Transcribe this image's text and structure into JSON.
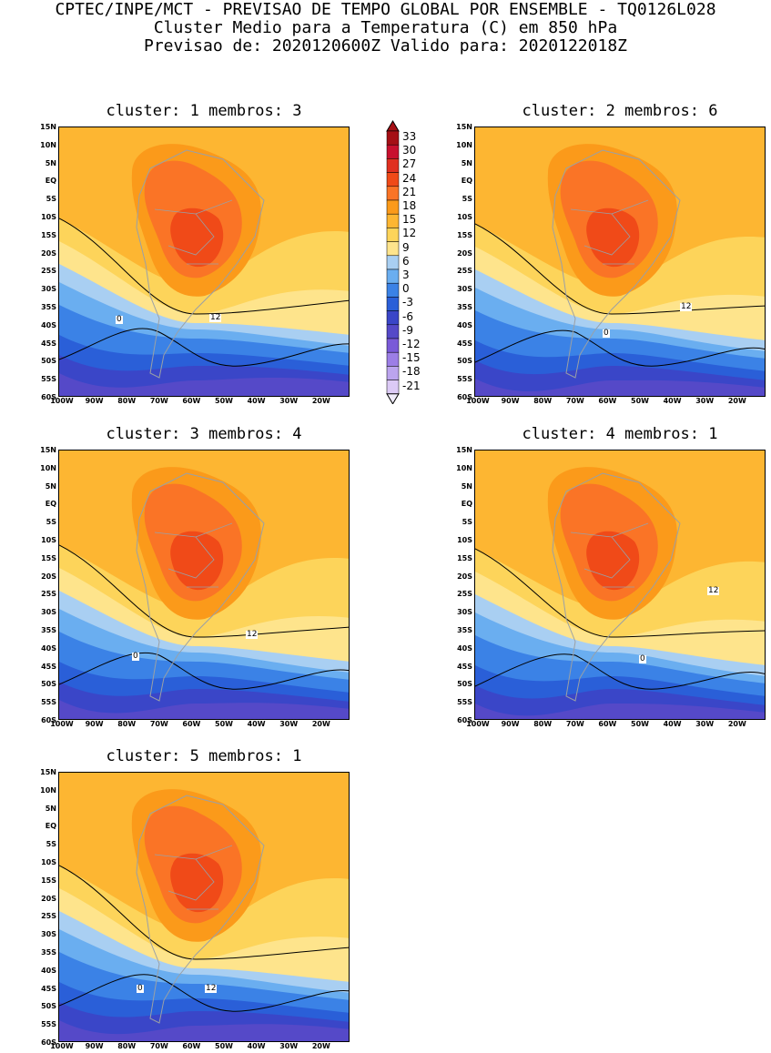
{
  "header": {
    "line1": "CPTEC/INPE/MCT - PREVISAO DE TEMPO GLOBAL POR ENSEMBLE - TQ0126L028",
    "line2": "Cluster Medio para a Temperatura (C) em 850 hPa",
    "line3": "Previsao de: 2020120600Z   Valido para: 2020122018Z"
  },
  "axes": {
    "lat_labels": [
      "15N",
      "10N",
      "5N",
      "EQ",
      "5S",
      "10S",
      "15S",
      "20S",
      "25S",
      "30S",
      "35S",
      "40S",
      "45S",
      "50S",
      "55S",
      "60S"
    ],
    "lon_labels": [
      "100W",
      "90W",
      "80W",
      "70W",
      "60W",
      "50W",
      "40W",
      "30W",
      "20W"
    ]
  },
  "colorbar": {
    "levels": [
      "33",
      "30",
      "27",
      "24",
      "21",
      "18",
      "15",
      "12",
      "9",
      "6",
      "3",
      "0",
      "-3",
      "-6",
      "-9",
      "-12",
      "-15",
      "-18",
      "-21"
    ],
    "colors": [
      "#a50f15",
      "#c8102e",
      "#e03020",
      "#f04a18",
      "#fa7426",
      "#fb9a1a",
      "#fdb632",
      "#fdd45a",
      "#fee48c",
      "#a9cff2",
      "#6aaef0",
      "#3b82e6",
      "#2a5fd8",
      "#3a46c8",
      "#5549c8",
      "#7a5ad8",
      "#9c7ee6",
      "#bba4ee",
      "#dccaf6"
    ]
  },
  "panels": [
    {
      "title": "cluster: 1   membros: 3",
      "contour12_label": "12",
      "contour0_label": "0"
    },
    {
      "title": "cluster: 2   membros: 6",
      "contour12_label": "12",
      "contour0_label": "0"
    },
    {
      "title": "cluster: 3   membros: 4",
      "contour12_label": "12",
      "contour0_label": "0"
    },
    {
      "title": "cluster: 4   membros: 1",
      "contour12_label": "12",
      "contour0_label": "0"
    },
    {
      "title": "cluster: 5   membros: 1",
      "contour12_label": "12",
      "contour0_label": "0"
    }
  ]
}
